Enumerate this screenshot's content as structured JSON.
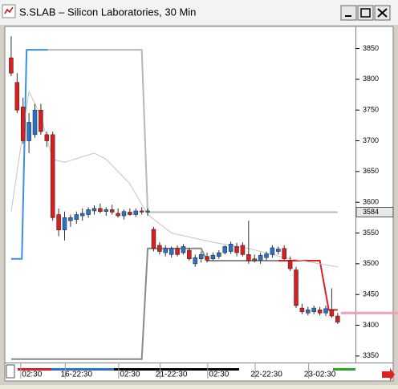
{
  "window_title": "S.SLAB – Silicon Laboratories, 30 Min",
  "chart_data": {
    "type": "candlestick",
    "open": [
      3835,
      3795,
      3755,
      3700,
      3710,
      3750,
      3710,
      3710,
      3580,
      3555,
      3570,
      3572,
      3578,
      3580,
      3586,
      3590,
      3585,
      3588,
      3582,
      3578,
      3584,
      3580,
      3586,
      3584,
      3556,
      3530,
      3518,
      3515,
      3525,
      3518,
      3522,
      3500,
      3508,
      3512,
      3508,
      3512,
      3518,
      3520,
      3528,
      3530,
      3515,
      3508,
      3506,
      3510,
      3515,
      3520,
      3525,
      3505,
      3490,
      3428,
      3420,
      3422,
      3425,
      3420,
      3425,
      3415
    ],
    "high": [
      3870,
      3810,
      3770,
      3745,
      3760,
      3760,
      3715,
      3715,
      3590,
      3585,
      3580,
      3585,
      3590,
      3592,
      3595,
      3598,
      3592,
      3596,
      3590,
      3588,
      3590,
      3590,
      3592,
      3590,
      3560,
      3535,
      3530,
      3528,
      3530,
      3532,
      3526,
      3515,
      3520,
      3518,
      3518,
      3522,
      3530,
      3536,
      3534,
      3535,
      3570,
      3515,
      3518,
      3520,
      3530,
      3528,
      3530,
      3512,
      3495,
      3435,
      3430,
      3432,
      3430,
      3432,
      3460,
      3420
    ],
    "low": [
      3805,
      3745,
      3695,
      3680,
      3705,
      3710,
      3690,
      3570,
      3545,
      3538,
      3560,
      3565,
      3570,
      3575,
      3580,
      3582,
      3578,
      3580,
      3575,
      3572,
      3578,
      3576,
      3580,
      3578,
      3520,
      3515,
      3512,
      3510,
      3512,
      3515,
      3505,
      3495,
      3502,
      3502,
      3505,
      3508,
      3515,
      3516,
      3512,
      3512,
      3500,
      3502,
      3500,
      3505,
      3510,
      3515,
      3505,
      3488,
      3428,
      3418,
      3416,
      3418,
      3416,
      3415,
      3412,
      3402
    ],
    "close": [
      3810,
      3750,
      3700,
      3730,
      3750,
      3715,
      3700,
      3575,
      3555,
      3575,
      3575,
      3580,
      3582,
      3588,
      3590,
      3585,
      3588,
      3584,
      3578,
      3585,
      3580,
      3586,
      3584,
      3586,
      3525,
      3520,
      3525,
      3525,
      3515,
      3528,
      3508,
      3510,
      3515,
      3506,
      3514,
      3518,
      3528,
      3532,
      3518,
      3515,
      3505,
      3505,
      3514,
      3516,
      3526,
      3524,
      3508,
      3492,
      3432,
      3422,
      3425,
      3428,
      3420,
      3427,
      3415,
      3405
    ],
    "up_color": "#2a72c8",
    "down_color": "#d81e1e",
    "wick_color": "#333333",
    "lines": [
      {
        "color": "#3a8ee6",
        "x": [
          0,
          1.8,
          2.6,
          6.2
        ],
        "values": [
          3508,
          3508,
          3848,
          3848
        ]
      },
      {
        "color": "#b8b8b8",
        "x": [
          6.2,
          22,
          23,
          55
        ],
        "values": [
          3848,
          3848,
          3584,
          3584
        ]
      },
      {
        "color": "#8a8a8a",
        "x": [
          0,
          22,
          23,
          32,
          33,
          45
        ],
        "values": [
          3345,
          3345,
          3525,
          3525,
          3505,
          3505
        ]
      },
      {
        "color": "#e02020",
        "x": [
          45,
          52,
          53.5,
          55
        ],
        "values": [
          3505,
          3505,
          3425,
          3425
        ]
      },
      {
        "color": "#c4c4c4",
        "x": [
          0,
          3,
          5,
          7,
          9,
          14,
          16,
          20,
          23,
          27,
          34,
          40,
          46,
          55
        ],
        "values": [
          3585,
          3780,
          3740,
          3670,
          3665,
          3680,
          3670,
          3630,
          3580,
          3550,
          3535,
          3525,
          3510,
          3495
        ]
      }
    ],
    "last_price": 3584,
    "cursor_price": 3420,
    "xlim": [
      -0.8,
      58
    ],
    "xticks": [
      {
        "value": 3.5,
        "label": "02:30"
      },
      {
        "value": 11,
        "label": "16-22:30"
      },
      {
        "value": 20,
        "label": "02:30"
      },
      {
        "value": 27,
        "label": "21-22:30"
      },
      {
        "value": 35,
        "label": "02:30"
      },
      {
        "value": 43,
        "label": "22-22:30"
      },
      {
        "value": 52,
        "label": "23-02:30"
      }
    ],
    "ylim": [
      3342,
      3882
    ],
    "yticks": [
      3350,
      3400,
      3450,
      3500,
      3550,
      3600,
      3650,
      3700,
      3750,
      3800,
      3850
    ]
  }
}
